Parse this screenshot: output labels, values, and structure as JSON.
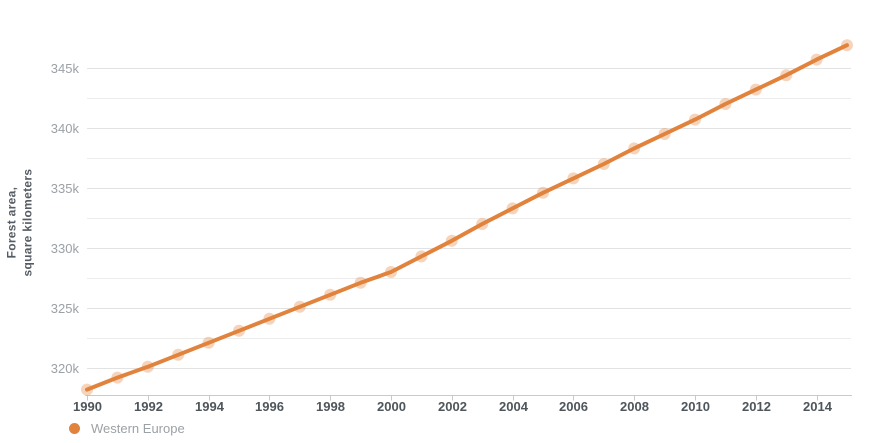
{
  "chart_data": {
    "type": "line",
    "title": "",
    "xlabel": "",
    "ylabel": "Forest area, square kilometers",
    "ylabel_lines": [
      "Forest area,",
      "square kilometers"
    ],
    "grid": true,
    "legend_position": "bottom-left",
    "values_unit": "thousand square kilometers",
    "series": [
      {
        "name": "Western Europe",
        "color": "#e1833c",
        "x": [
          1990,
          1991,
          1992,
          1993,
          1994,
          1995,
          1996,
          1997,
          1998,
          1999,
          2000,
          2001,
          2002,
          2003,
          2004,
          2005,
          2006,
          2007,
          2008,
          2009,
          2010,
          2011,
          2012,
          2013,
          2014,
          2015
        ],
        "values": [
          318.2,
          319.2,
          320.1,
          321.1,
          322.1,
          323.1,
          324.1,
          325.1,
          326.1,
          327.1,
          328.0,
          329.3,
          330.6,
          332.0,
          333.3,
          334.6,
          335.8,
          337.0,
          338.3,
          339.5,
          340.7,
          342.0,
          343.2,
          344.4,
          345.7,
          346.9
        ]
      }
    ],
    "x_axis": {
      "tick_labels": [
        "1990",
        "1992",
        "1994",
        "1996",
        "1998",
        "2000",
        "2002",
        "2004",
        "2006",
        "2008",
        "2010",
        "2012",
        "2014"
      ],
      "range": [
        1990,
        2015
      ]
    },
    "y_axis": {
      "ticks": [
        {
          "value": 320,
          "label": "320k"
        },
        {
          "value": 325,
          "label": "325k"
        },
        {
          "value": 330,
          "label": "330k"
        },
        {
          "value": 335,
          "label": "335k"
        },
        {
          "value": 340,
          "label": "340k"
        },
        {
          "value": 345,
          "label": "345k"
        }
      ],
      "minor_gridlines": [
        322.5,
        327.5,
        332.5,
        337.5,
        342.5
      ],
      "range": [
        317.5,
        348
      ]
    },
    "legend": [
      {
        "label": "Western Europe",
        "color": "#e1833c"
      }
    ],
    "colors": {
      "line": "#e1833c",
      "marker_halo": "#e1833c",
      "gridline_major": "#e2e2e2",
      "gridline_minor": "#ededed",
      "axis_line": "#c9c9c9",
      "x_tick_label": "#4e555b",
      "y_tick_label": "#9ca1a6",
      "axis_title": "#555c63",
      "legend_text": "#9ca1a6"
    }
  }
}
